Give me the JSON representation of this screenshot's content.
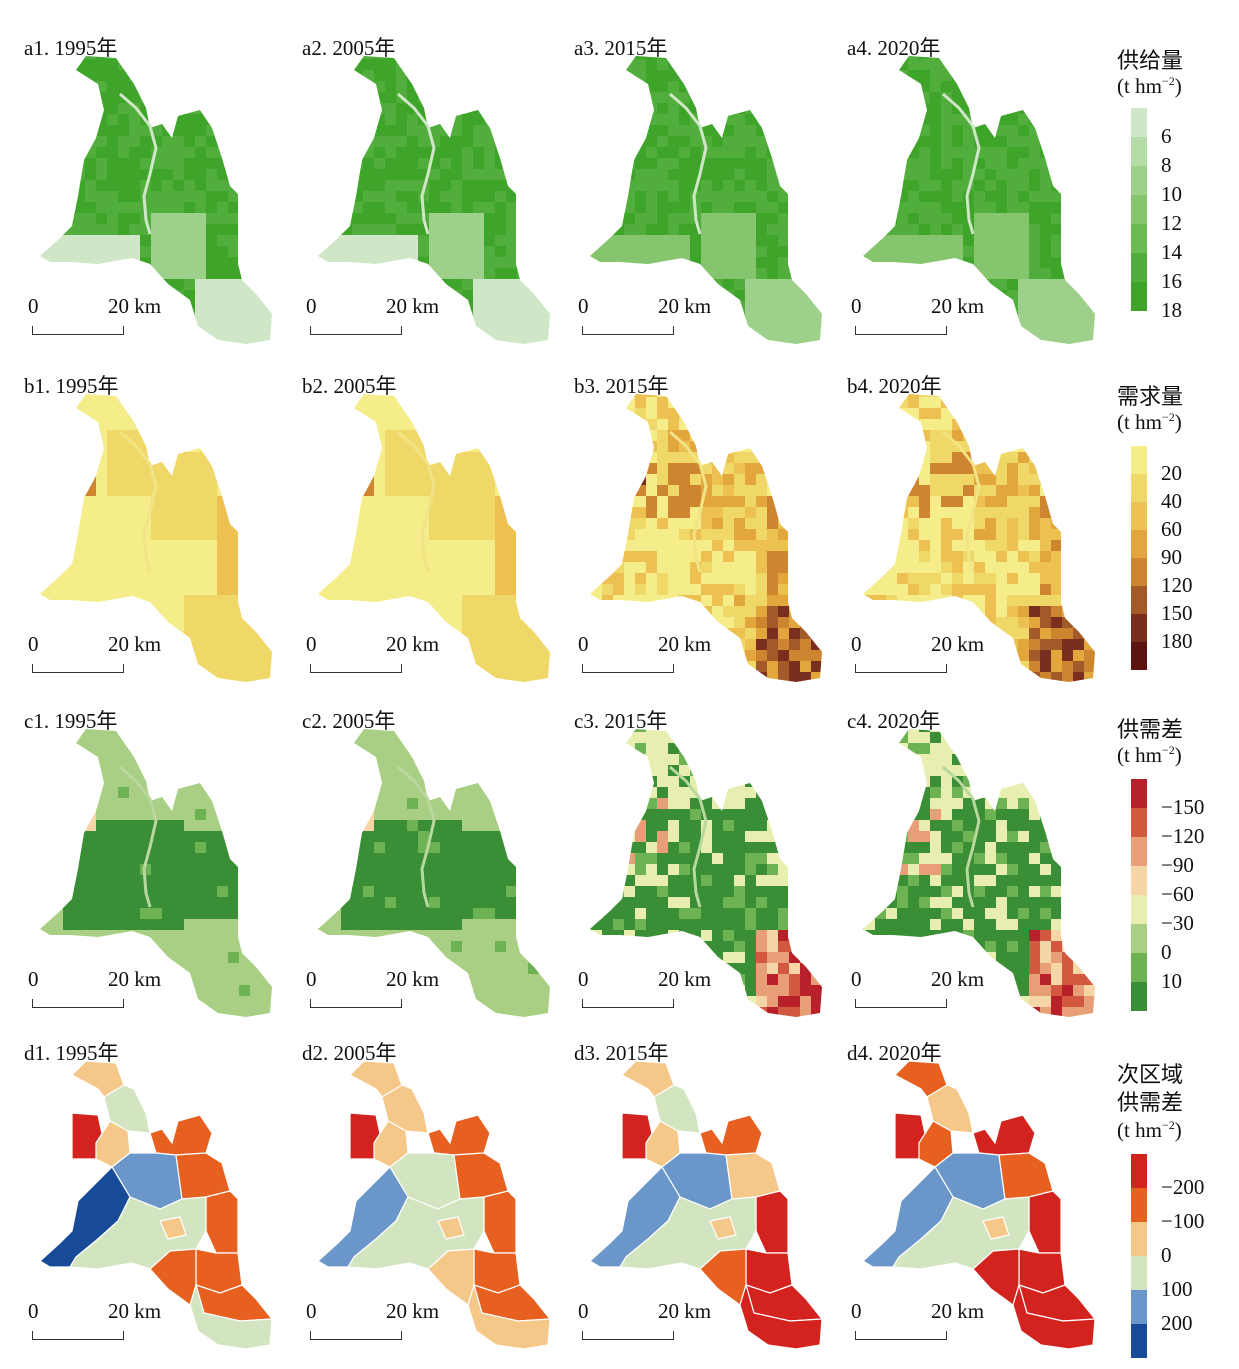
{
  "rows": [
    {
      "id": "a",
      "titles": [
        "a1. 1995年",
        "a2. 2005年",
        "a3. 2015年",
        "a4. 2020年"
      ]
    },
    {
      "id": "b",
      "titles": [
        "b1. 1995年",
        "b2. 2005年",
        "b3. 2015年",
        "b4. 2020年"
      ]
    },
    {
      "id": "c",
      "titles": [
        "c1. 1995年",
        "c2. 2005年",
        "c3. 2015年",
        "c4. 2020年"
      ]
    },
    {
      "id": "d",
      "titles": [
        "d1. 1995年",
        "d2. 2005年",
        "d3. 2015年",
        "d4. 2020年"
      ]
    }
  ],
  "scalebar": {
    "zero": "0",
    "dist": "20 km"
  },
  "legends": {
    "supply": {
      "title": "供给量",
      "unit": "t hm",
      "unit_sup": "−2",
      "ticks": [
        "6",
        "8",
        "10",
        "12",
        "14",
        "16",
        "18"
      ],
      "colors": [
        "#cfe7c6",
        "#b6dca8",
        "#9dd08a",
        "#84c56e",
        "#6bba54",
        "#52ae3c",
        "#3fa42a"
      ]
    },
    "demand": {
      "title": "需求量",
      "unit": "t hm",
      "unit_sup": "−2",
      "ticks": [
        "20",
        "40",
        "60",
        "90",
        "120",
        "150",
        "180"
      ],
      "colors": [
        "#f5ec8a",
        "#f0d868",
        "#ecc151",
        "#e3a63c",
        "#cd8530",
        "#a25a28",
        "#7a2e1e",
        "#5c1411"
      ]
    },
    "gap": {
      "title": "供需差",
      "unit": "t hm",
      "unit_sup": "−2",
      "ticks": [
        "−150",
        "−120",
        "−90",
        "−60",
        "−30",
        "0",
        "10"
      ],
      "colors": [
        "#b8202a",
        "#d35840",
        "#e89f78",
        "#f6d6a6",
        "#e7eeaf",
        "#a9cf85",
        "#6db354",
        "#3a8e35"
      ]
    },
    "sub": {
      "title1": "次区域",
      "title2": "供需差",
      "unit": "t hm",
      "unit_sup": "−2",
      "ticks": [
        "−200",
        "−100",
        "0",
        "100",
        "200"
      ],
      "colors": [
        "#d2231f",
        "#e8601f",
        "#f5c88a",
        "#d3e5c0",
        "#6b96c9",
        "#174b98"
      ]
    }
  }
}
